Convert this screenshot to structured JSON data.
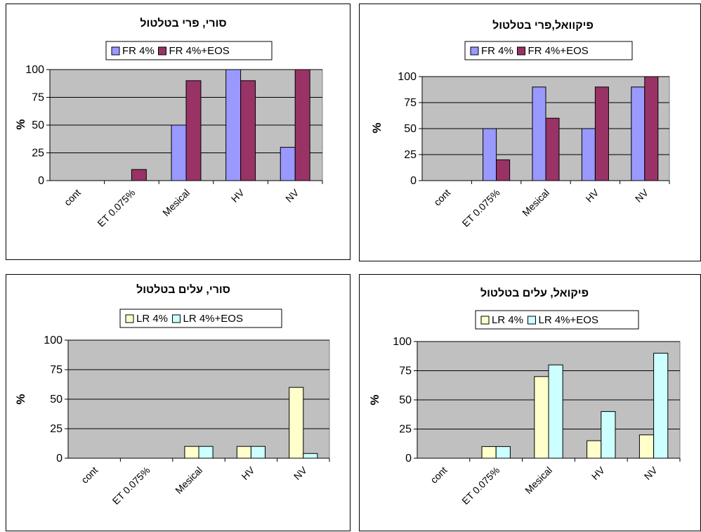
{
  "chart_data": [
    {
      "type": "bar",
      "title": "סורי, פרי בטלטול",
      "ylabel": "%",
      "xlabel": "",
      "categories": [
        "cont",
        "ET 0.075%",
        "Mesical",
        "HV",
        "NV"
      ],
      "yticks": [
        0,
        25,
        50,
        75,
        100
      ],
      "ylim": [
        0,
        100
      ],
      "grid": true,
      "legend_position": "top",
      "series": [
        {
          "name": "FR 4%",
          "color": "#9999FF",
          "values": [
            0,
            0,
            50,
            100,
            30
          ]
        },
        {
          "name": "FR 4%+EOS",
          "color": "#993366",
          "values": [
            0,
            10,
            90,
            90,
            100
          ]
        }
      ]
    },
    {
      "type": "bar",
      "title": "פיקוואל,פרי בטלטול",
      "ylabel": "%",
      "xlabel": "",
      "categories": [
        "cont",
        "ET 0.075%",
        "Mesical",
        "HV",
        "NV"
      ],
      "yticks": [
        0,
        25,
        50,
        75,
        100
      ],
      "ylim": [
        0,
        100
      ],
      "grid": true,
      "legend_position": "top",
      "series": [
        {
          "name": "FR 4%",
          "color": "#9999FF",
          "values": [
            0,
            50,
            90,
            50,
            90
          ]
        },
        {
          "name": "FR 4%+EOS",
          "color": "#993366",
          "values": [
            0,
            20,
            60,
            90,
            100
          ]
        }
      ]
    },
    {
      "type": "bar",
      "title": "סורי, עלים בטלטול",
      "ylabel": "%",
      "xlabel": "",
      "categories": [
        "cont",
        "ET 0.075%",
        "Mesical",
        "HV",
        "NV"
      ],
      "yticks": [
        0,
        25,
        50,
        75,
        100
      ],
      "ylim": [
        0,
        100
      ],
      "grid": true,
      "legend_position": "top",
      "series": [
        {
          "name": "LR 4%",
          "color": "#FFFFCC",
          "values": [
            0,
            0,
            10,
            10,
            60
          ]
        },
        {
          "name": "LR 4%+EOS",
          "color": "#CCFFFF",
          "values": [
            0,
            0,
            10,
            10,
            4
          ]
        }
      ]
    },
    {
      "type": "bar",
      "title": "פיקואל, עלים בטלטול",
      "ylabel": "%",
      "xlabel": "",
      "categories": [
        "cont",
        "ET 0.075%",
        "Mesical",
        "HV",
        "NV"
      ],
      "yticks": [
        0,
        25,
        50,
        75,
        100
      ],
      "ylim": [
        0,
        100
      ],
      "grid": true,
      "legend_position": "top",
      "series": [
        {
          "name": "LR 4%",
          "color": "#FFFFCC",
          "values": [
            0,
            10,
            70,
            15,
            20
          ]
        },
        {
          "name": "LR 4%+EOS",
          "color": "#CCFFFF",
          "values": [
            0,
            10,
            80,
            40,
            90
          ]
        }
      ]
    }
  ],
  "colors": {
    "plot_background": "#C0C0C0",
    "gridline": "#000000"
  }
}
